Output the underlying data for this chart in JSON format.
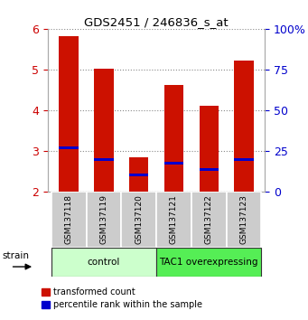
{
  "title": "GDS2451 / 246836_s_at",
  "samples": [
    "GSM137118",
    "GSM137119",
    "GSM137120",
    "GSM137121",
    "GSM137122",
    "GSM137123"
  ],
  "red_values": [
    5.82,
    5.02,
    2.85,
    4.62,
    4.12,
    5.22
  ],
  "blue_values": [
    3.08,
    2.8,
    2.42,
    2.7,
    2.55,
    2.8
  ],
  "ylim": [
    2.0,
    6.0
  ],
  "yticks_left": [
    2,
    3,
    4,
    5,
    6
  ],
  "yticks_right": [
    0,
    25,
    50,
    75,
    100
  ],
  "bar_width": 0.55,
  "red_color": "#cc1100",
  "blue_color": "#0000cc",
  "groups": [
    {
      "label": "control",
      "indices": [
        0,
        1,
        2
      ],
      "color": "#ccffcc"
    },
    {
      "label": "TAC1 overexpressing",
      "indices": [
        3,
        4,
        5
      ],
      "color": "#55ee55"
    }
  ],
  "strain_label": "strain",
  "legend_red": "transformed count",
  "legend_blue": "percentile rank within the sample",
  "grid_color": "#888888",
  "tick_label_color_left": "#cc0000",
  "tick_label_color_right": "#0000cc",
  "sample_box_color": "#cccccc",
  "group_border_color": "#333333"
}
